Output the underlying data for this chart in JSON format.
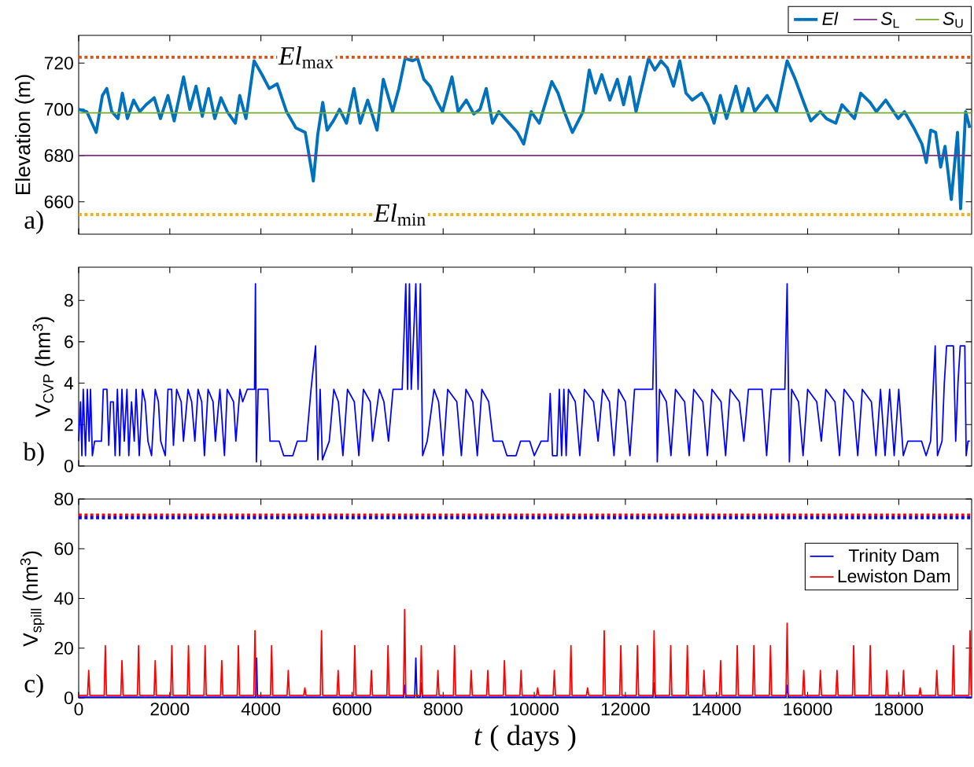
{
  "chart_data": [
    {
      "type": "line",
      "ylabel": "Elevation (m)",
      "xlim": [
        0,
        19600
      ],
      "ylim": [
        646,
        732
      ],
      "xticks": [
        0,
        2000,
        4000,
        6000,
        8000,
        10000,
        12000,
        14000,
        16000,
        18000
      ],
      "yticks": [
        660,
        680,
        700,
        720
      ],
      "tick_labels": "y",
      "legend": "top right",
      "annotations": [
        "a)"
      ],
      "series": [
        {
          "name": "*El*",
          "color": "#0072bd",
          "x": [
            0,
            178,
            384,
            521,
            617,
            726,
            863,
            959,
            1069,
            1206,
            1343,
            1480,
            1658,
            1795,
            1959,
            2096,
            2302,
            2439,
            2576,
            2713,
            2850,
            2987,
            3124,
            3261,
            3439,
            3535,
            3672,
            3850,
            4024,
            4183,
            4357,
            4562,
            4768,
            4973,
            5151,
            5247,
            5357,
            5453,
            5590,
            5727,
            5878,
            6042,
            6179,
            6343,
            6549,
            6686,
            6891,
            7028,
            7165,
            7330,
            7439,
            7576,
            7713,
            7850,
            7987,
            8193,
            8330,
            8508,
            8672,
            8809,
            8946,
            9083,
            9220,
            9357,
            9494,
            9631,
            9768,
            9932,
            10111,
            10385,
            10522,
            10659,
            10837,
            11070,
            11207,
            11344,
            11481,
            11659,
            11823,
            11960,
            12097,
            12234,
            12508,
            12645,
            12782,
            12919,
            13056,
            13193,
            13330,
            13467,
            13673,
            13810,
            13947,
            14084,
            14221,
            14426,
            14563,
            14700,
            14837,
            15111,
            15317,
            15550,
            15728,
            15933,
            16070,
            16276,
            16413,
            16618,
            16755,
            17029,
            17166,
            17372,
            17509,
            17714,
            17988,
            18125,
            18331,
            18509,
            18605,
            18701,
            18810,
            18920,
            19016,
            19153,
            19290,
            19358,
            19468,
            19560
          ],
          "values": [
            700,
            699,
            690,
            706,
            709,
            699,
            696,
            707,
            696,
            704,
            699,
            702,
            705,
            696,
            706,
            695,
            714,
            700,
            710,
            697,
            709,
            696,
            705,
            699,
            694,
            706,
            696,
            721,
            715,
            709,
            711,
            699,
            692,
            690,
            669,
            689,
            703,
            691,
            695,
            700,
            694,
            709,
            694,
            704,
            691,
            713,
            699,
            709,
            722,
            721,
            722,
            713,
            710,
            704,
            699,
            714,
            699,
            704,
            698,
            700,
            709,
            694,
            699,
            696,
            693,
            690,
            685,
            699,
            694,
            712,
            707,
            699,
            690,
            699,
            717,
            707,
            715,
            704,
            713,
            702,
            714,
            699,
            722,
            717,
            721,
            718,
            710,
            721,
            707,
            704,
            707,
            702,
            694,
            706,
            696,
            710,
            699,
            709,
            699,
            706,
            699,
            721,
            713,
            702,
            695,
            699,
            696,
            694,
            702,
            696,
            707,
            703,
            699,
            704,
            696,
            699,
            692,
            685,
            677,
            691,
            690,
            675,
            684,
            661,
            690,
            657,
            699,
            692
          ]
        },
        {
          "name": "*S*$_{L}$",
          "color": "#7e2f8e",
          "x": [
            0,
            19600
          ],
          "values": [
            680,
            680
          ]
        },
        {
          "name": "*S*$_{U}$",
          "color": "#77ac30",
          "x": [
            0,
            19600
          ],
          "values": [
            698.5,
            698.5
          ]
        }
      ],
      "ref_lines": [
        {
          "axis": "y",
          "value": 722.5,
          "label": "*El*$_{max}$",
          "color": "#d95319",
          "line_style": "dotted"
        },
        {
          "axis": "y",
          "value": 654.5,
          "label": "*El*$_{min}$",
          "color": "#edb120",
          "line_style": "dotted"
        }
      ]
    },
    {
      "type": "line",
      "ylabel": "V$_{CVP}$ (hm$^{3}$)",
      "xlim": [
        0,
        19600
      ],
      "ylim": [
        0,
        9.6
      ],
      "xticks": [
        0,
        2000,
        4000,
        6000,
        8000,
        10000,
        12000,
        14000,
        16000,
        18000
      ],
      "yticks": [
        0,
        2,
        4,
        6,
        8
      ],
      "tick_labels": "y",
      "annotations": [
        "b)"
      ],
      "series": [
        {
          "color": "#0000ff",
          "x": [
            0,
            40,
            70,
            100,
            150,
            190,
            230,
            260,
            300,
            350,
            500,
            540,
            620,
            660,
            700,
            760,
            800,
            850,
            900,
            950,
            1000,
            1060,
            1100,
            1160,
            1220,
            1260,
            1330,
            1400,
            1460,
            1520,
            1600,
            1680,
            1750,
            1800,
            1900,
            1960,
            2040,
            2080,
            2150,
            2250,
            2300,
            2400,
            2480,
            2550,
            2620,
            2700,
            2760,
            2840,
            2950,
            3000,
            3100,
            3200,
            3260,
            3400,
            3450,
            3540,
            3600,
            3700,
            3860,
            3880,
            3900,
            3940,
            4150,
            4200,
            4400,
            4500,
            4700,
            4800,
            5000,
            5100,
            5200,
            5250,
            5300,
            5350,
            5500,
            5600,
            5700,
            5800,
            5900,
            6050,
            6150,
            6250,
            6400,
            6450,
            6600,
            6700,
            6800,
            6900,
            7100,
            7180,
            7220,
            7260,
            7300,
            7400,
            7450,
            7500,
            7550,
            7650,
            7800,
            7900,
            8000,
            8100,
            8300,
            8400,
            8500,
            8650,
            8750,
            8850,
            9000,
            9100,
            9300,
            9400,
            9600,
            9700,
            9900,
            10000,
            10150,
            10300,
            10350,
            10400,
            10500,
            10550,
            10600,
            10650,
            10700,
            10750,
            10900,
            11000,
            11100,
            11300,
            11400,
            11500,
            11650,
            11750,
            11850,
            12000,
            12100,
            12200,
            12400,
            12600,
            12650,
            12700,
            12750,
            12900,
            13000,
            13100,
            13300,
            13400,
            13500,
            13700,
            13800,
            13900,
            14100,
            14200,
            14300,
            14500,
            14600,
            14700,
            15000,
            15100,
            15200,
            15500,
            15550,
            15600,
            15650,
            15800,
            15900,
            16000,
            16200,
            16300,
            16400,
            16600,
            16700,
            16800,
            17000,
            17100,
            17200,
            17400,
            17500,
            17600,
            17700,
            17800,
            17900,
            18000,
            18100,
            18200,
            18500,
            18600,
            18700,
            18800,
            18850,
            18950,
            19000,
            19050,
            19200,
            19250,
            19300,
            19350,
            19450,
            19480,
            19520,
            19560
          ],
          "values": [
            1.2,
            3.1,
            0.5,
            3.7,
            0.5,
            3.7,
            1.2,
            3.7,
            0.5,
            1.2,
            1.2,
            3.7,
            3.7,
            1.0,
            3.1,
            3.1,
            0.5,
            3.7,
            0.5,
            3.7,
            1.2,
            3.7,
            0.5,
            3.1,
            1.2,
            3.7,
            0.5,
            3.7,
            3.1,
            1.2,
            0.5,
            3.7,
            3.1,
            1.2,
            0.5,
            3.7,
            3.7,
            1.0,
            3.7,
            3.1,
            1.2,
            3.7,
            3.1,
            1.2,
            3.7,
            3.1,
            0.5,
            3.7,
            3.1,
            1.2,
            3.7,
            0.5,
            3.7,
            3.1,
            1.2,
            3.7,
            3.1,
            3.7,
            3.7,
            8.8,
            0.2,
            3.7,
            3.7,
            1.2,
            1.2,
            0.5,
            0.5,
            1.2,
            1.2,
            3.7,
            5.8,
            0.3,
            3.7,
            0.3,
            1.2,
            3.7,
            3.1,
            0.5,
            3.7,
            3.1,
            0.5,
            3.7,
            3.1,
            1.2,
            3.7,
            3.1,
            1.2,
            3.7,
            3.7,
            8.8,
            3.7,
            8.8,
            3.7,
            8.8,
            3.7,
            8.8,
            0.5,
            1.2,
            3.7,
            3.1,
            0.5,
            3.7,
            3.1,
            0.5,
            3.7,
            3.1,
            0.5,
            3.7,
            3.1,
            1.2,
            1.2,
            0.5,
            0.5,
            1.2,
            1.2,
            0.5,
            1.2,
            1.2,
            3.5,
            0.5,
            0.5,
            3.7,
            0.5,
            3.7,
            0.5,
            3.7,
            3.1,
            0.5,
            3.7,
            3.1,
            1.2,
            3.7,
            3.1,
            0.5,
            3.7,
            3.1,
            0.5,
            3.7,
            3.7,
            3.7,
            8.8,
            0.2,
            3.7,
            3.1,
            0.5,
            3.7,
            3.1,
            0.5,
            3.7,
            3.1,
            0.5,
            3.7,
            3.1,
            0.5,
            3.7,
            3.1,
            1.2,
            3.7,
            3.7,
            0.5,
            3.7,
            3.7,
            8.8,
            0.2,
            3.7,
            3.1,
            0.5,
            3.7,
            3.1,
            1.2,
            3.7,
            3.1,
            0.5,
            3.7,
            3.1,
            0.5,
            3.7,
            3.1,
            0.5,
            3.7,
            0.5,
            3.7,
            0.5,
            3.7,
            0.5,
            1.2,
            1.2,
            0.5,
            1.2,
            5.8,
            0.5,
            1.2,
            4.0,
            5.8,
            5.8,
            1.2,
            4.0,
            5.8,
            5.8,
            0.5,
            1.2,
            1.2
          ]
        }
      ]
    },
    {
      "type": "line",
      "xlabel": "*t* ( days )",
      "ylabel": "V$_{spill}$ (hm$^{3}$)",
      "xlim": [
        0,
        19600
      ],
      "ylim": [
        0,
        80
      ],
      "xticks": [
        0,
        2000,
        4000,
        6000,
        8000,
        10000,
        12000,
        14000,
        16000,
        18000
      ],
      "yticks": [
        0,
        20,
        40,
        60,
        80
      ],
      "legend": "right",
      "annotations": [
        "c)"
      ],
      "series": [
        {
          "name": "Trinity Dam",
          "color": "#0000ff",
          "x": [
            0,
            3885,
            3905,
            3925,
            7130,
            7155,
            7180,
            7375,
            7400,
            7425,
            7495,
            7520,
            7545,
            12605,
            12630,
            12655,
            15525,
            15550,
            15575,
            19600
          ],
          "values": [
            0.3,
            0.3,
            16,
            0.3,
            0.3,
            5,
            0.3,
            0.3,
            16,
            0.3,
            0.3,
            6,
            0.3,
            0.3,
            6,
            0.3,
            0.3,
            5,
            0.3,
            0.3
          ]
        },
        {
          "name": "Lewiston Dam",
          "color": "#ff0000",
          "x": [
            0,
            195,
            220,
            245,
            560,
            585,
            610,
            925,
            950,
            975,
            1290,
            1315,
            1340,
            1655,
            1680,
            1705,
            2020,
            2045,
            2070,
            2385,
            2410,
            2435,
            2750,
            2775,
            2800,
            3115,
            3140,
            3165,
            3480,
            3505,
            3530,
            3845,
            3870,
            3895,
            4210,
            4235,
            4260,
            4575,
            4600,
            4625,
            4940,
            4965,
            4990,
            5305,
            5330,
            5355,
            5670,
            5695,
            5720,
            6035,
            6060,
            6085,
            6400,
            6425,
            6450,
            6765,
            6790,
            6815,
            7130,
            7155,
            7180,
            7495,
            7520,
            7545,
            7860,
            7885,
            7910,
            8225,
            8250,
            8275,
            8590,
            8615,
            8640,
            8955,
            8980,
            9005,
            9320,
            9345,
            9370,
            9685,
            9710,
            9735,
            10050,
            10075,
            10100,
            10415,
            10440,
            10465,
            10780,
            10805,
            10830,
            11145,
            11170,
            11195,
            11510,
            11535,
            11560,
            11875,
            11900,
            11925,
            12240,
            12265,
            12290,
            12605,
            12630,
            12655,
            12970,
            12995,
            13020,
            13335,
            13360,
            13385,
            13700,
            13725,
            13750,
            14065,
            14090,
            14115,
            14430,
            14455,
            14480,
            14795,
            14820,
            14845,
            15160,
            15185,
            15210,
            15525,
            15550,
            15575,
            15890,
            15915,
            15940,
            16255,
            16280,
            16305,
            16620,
            16645,
            16670,
            16985,
            17010,
            17035,
            17350,
            17375,
            17400,
            17715,
            17740,
            17765,
            18080,
            18105,
            18130,
            18445,
            18470,
            18495,
            18810,
            18835,
            18860,
            19175,
            19200,
            19225,
            19540,
            19565,
            19590
          ],
          "values": [
            1,
            1,
            11,
            1,
            1,
            21,
            1,
            1,
            15,
            1,
            1,
            21,
            1,
            1,
            15,
            1,
            1,
            21,
            1,
            1,
            21,
            1,
            1,
            21,
            1,
            1,
            15,
            1,
            1,
            21,
            1,
            1,
            27,
            1,
            1,
            21,
            1,
            1,
            11,
            1,
            1,
            4,
            1,
            1,
            27,
            1,
            1,
            11,
            1,
            1,
            21,
            1,
            1,
            11,
            1,
            1,
            21,
            1,
            1,
            35.5,
            1,
            1,
            21,
            1,
            1,
            11,
            1,
            1,
            21,
            1,
            1,
            11,
            1,
            1,
            11,
            1,
            1,
            15,
            1,
            1,
            11,
            1,
            1,
            4,
            1,
            1,
            11,
            1,
            1,
            21,
            1,
            1,
            4,
            1,
            1,
            27,
            1,
            1,
            21,
            1,
            1,
            21,
            1,
            1,
            27,
            1,
            1,
            21,
            1,
            1,
            21,
            1,
            1,
            11,
            1,
            1,
            15,
            1,
            1,
            21,
            1,
            1,
            21,
            1,
            1,
            21,
            1,
            1,
            30,
            1,
            1,
            11,
            1,
            1,
            11,
            1,
            1,
            11,
            1,
            1,
            21,
            1,
            1,
            21,
            1,
            1,
            11,
            1,
            1,
            11,
            1,
            1,
            4,
            1,
            1,
            11,
            1,
            1,
            21,
            1,
            1,
            27,
            1
          ]
        }
      ],
      "ref_lines": [
        {
          "axis": "y",
          "value": 73.5,
          "color": "#ff0000",
          "line_style": "dotted"
        },
        {
          "axis": "y",
          "value": 72.5,
          "color": "#0000ff",
          "line_style": "dotted"
        }
      ]
    }
  ]
}
